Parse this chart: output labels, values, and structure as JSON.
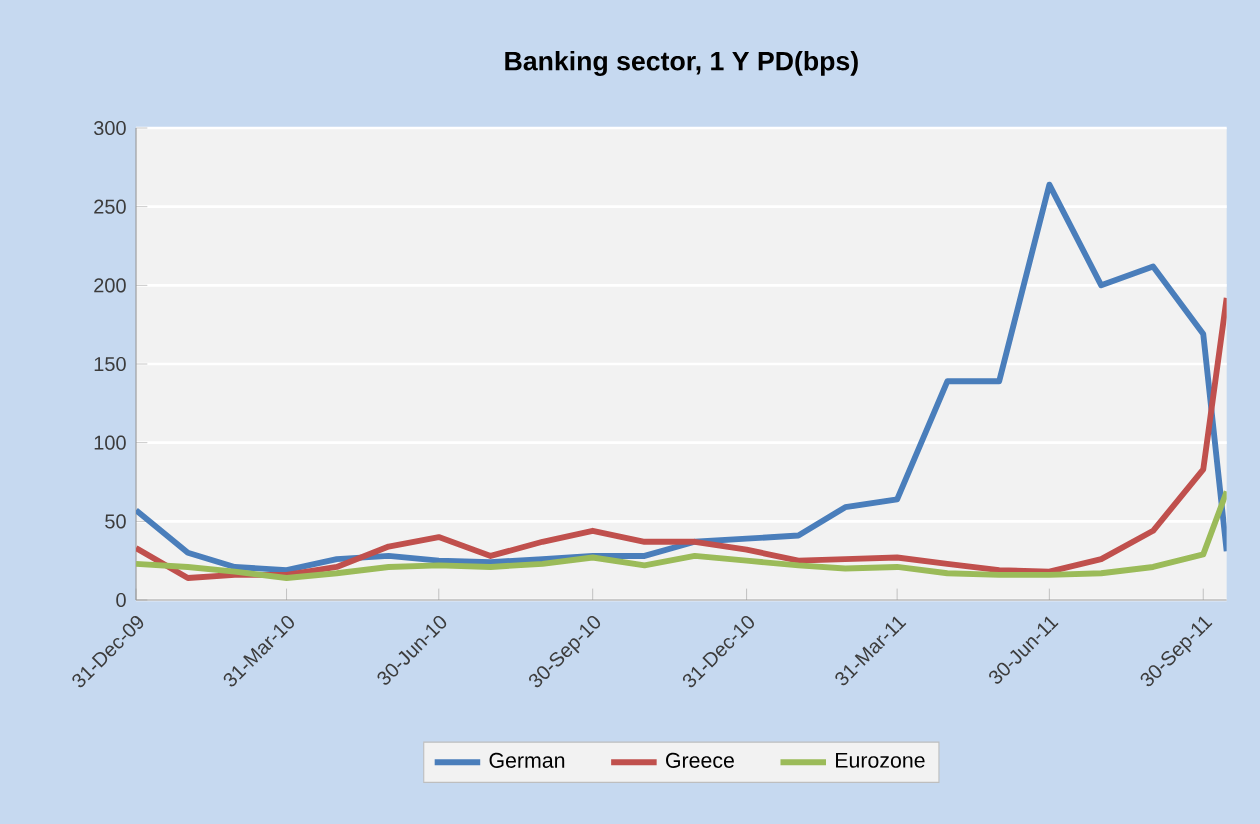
{
  "chart_data": {
    "type": "line",
    "title": "Banking sector, 1 Y PD(bps)",
    "x": [
      "2009-12-31",
      "2010-01-31",
      "2010-02-28",
      "2010-03-31",
      "2010-04-30",
      "2010-05-31",
      "2010-06-30",
      "2010-07-31",
      "2010-08-31",
      "2010-09-30",
      "2010-10-31",
      "2010-11-30",
      "2010-12-31",
      "2011-01-31",
      "2011-02-28",
      "2011-03-31",
      "2011-04-30",
      "2011-05-31",
      "2011-06-30",
      "2011-07-31",
      "2011-08-31",
      "2011-09-30",
      "2011-10-14"
    ],
    "series": [
      {
        "name": "German",
        "color": "#4a7ebb",
        "values": [
          57,
          30,
          21,
          19,
          26,
          28,
          25,
          24,
          26,
          28,
          28,
          37,
          39,
          41,
          59,
          64,
          139,
          139,
          264,
          200,
          212,
          169,
          31
        ]
      },
      {
        "name": "Greece",
        "color": "#c0504d",
        "values": [
          33,
          14,
          16,
          16,
          21,
          34,
          40,
          28,
          37,
          44,
          37,
          37,
          32,
          25,
          26,
          27,
          23,
          19,
          18,
          26,
          44,
          83,
          192
        ]
      },
      {
        "name": "Eurozone",
        "color": "#9bbb59",
        "values": [
          23,
          21,
          18,
          14,
          17,
          21,
          22,
          21,
          23,
          27,
          22,
          28,
          25,
          22,
          20,
          21,
          17,
          16,
          16,
          17,
          21,
          29,
          69
        ]
      }
    ],
    "xlim": [
      "2009-12-31",
      "2011-10-14"
    ],
    "xticks": [
      {
        "value": "2009-12-31",
        "label": "31-Dec-09"
      },
      {
        "value": "2010-03-31",
        "label": "31-Mar-10"
      },
      {
        "value": "2010-06-30",
        "label": "30-Jun-10"
      },
      {
        "value": "2010-09-30",
        "label": "30-Sep-10"
      },
      {
        "value": "2010-12-31",
        "label": "31-Dec-10"
      },
      {
        "value": "2011-03-31",
        "label": "31-Mar-11"
      },
      {
        "value": "2011-06-30",
        "label": "30-Jun-11"
      },
      {
        "value": "2011-09-30",
        "label": "30-Sep-11"
      }
    ],
    "ylim": [
      0,
      300
    ],
    "yticks": [
      0,
      50,
      100,
      150,
      200,
      250,
      300
    ],
    "grid": "y",
    "legend": "bottom",
    "marker": "none",
    "line_style": "solid"
  }
}
